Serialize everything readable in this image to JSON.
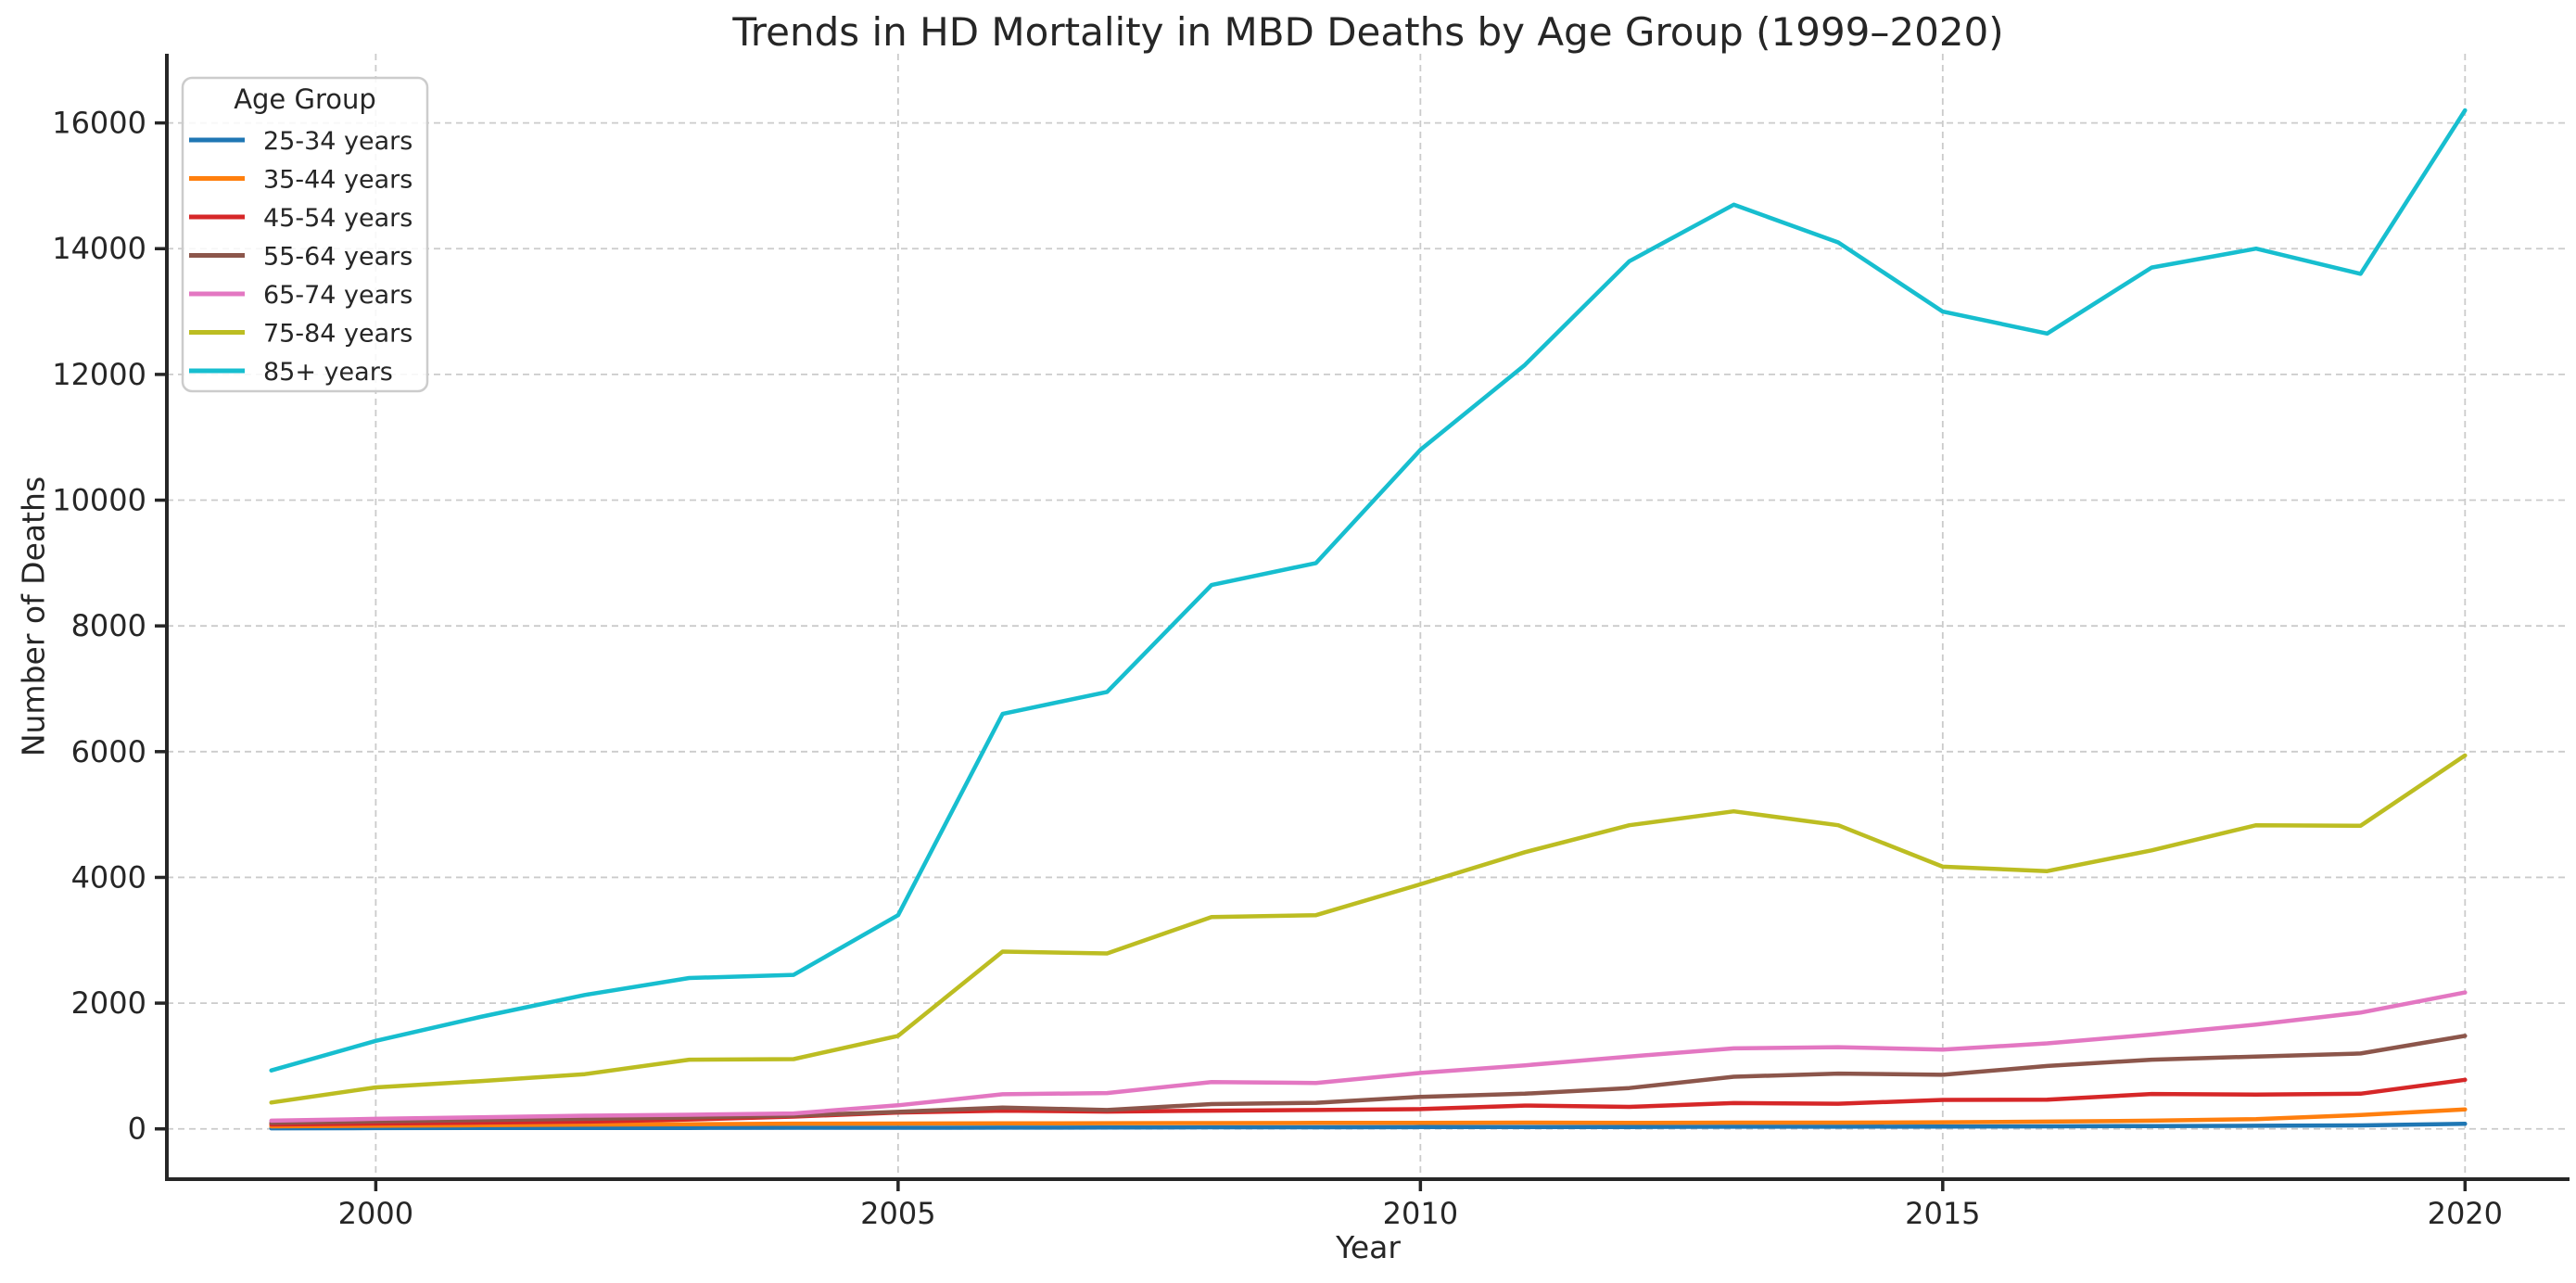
{
  "page": {
    "background": "#ffffff",
    "text_color": "#262626"
  },
  "chart_data": {
    "type": "line",
    "title": "Trends in HD Mortality in MBD Deaths by Age Group (1999–2020)",
    "xlabel": "Year",
    "ylabel": "Number of Deaths",
    "legend_title": "Age Group",
    "legend_position": "upper left",
    "grid": true,
    "grid_color": "#cbcbcb",
    "axis_color": "#262626",
    "text_color": "#262626",
    "xlim": [
      1998,
      2021
    ],
    "ylim": [
      -800,
      17100
    ],
    "xticks": [
      2000,
      2005,
      2010,
      2015,
      2020
    ],
    "yticks": [
      0,
      2000,
      4000,
      6000,
      8000,
      10000,
      12000,
      14000,
      16000
    ],
    "x": [
      1999,
      2000,
      2001,
      2002,
      2003,
      2004,
      2005,
      2006,
      2007,
      2008,
      2009,
      2010,
      2011,
      2012,
      2013,
      2014,
      2015,
      2016,
      2017,
      2018,
      2019,
      2020
    ],
    "series": [
      {
        "name": "25-34 years",
        "color": "#1f77b4",
        "values": [
          10,
          12,
          14,
          15,
          15,
          18,
          18,
          20,
          22,
          25,
          25,
          28,
          30,
          30,
          35,
          35,
          38,
          40,
          45,
          50,
          55,
          80
        ]
      },
      {
        "name": "35-44 years",
        "color": "#ff7f0e",
        "values": [
          40,
          50,
          58,
          68,
          75,
          83,
          85,
          88,
          90,
          92,
          95,
          95,
          100,
          95,
          100,
          100,
          105,
          115,
          130,
          155,
          220,
          310
        ]
      },
      {
        "name": "45-54 years",
        "color": "#d62728",
        "values": [
          70,
          85,
          100,
          115,
          150,
          195,
          260,
          290,
          275,
          290,
          300,
          315,
          370,
          350,
          410,
          400,
          460,
          465,
          555,
          545,
          560,
          780
        ]
      },
      {
        "name": "55-64 years",
        "color": "#8c564b",
        "values": [
          95,
          120,
          140,
          160,
          180,
          210,
          270,
          340,
          300,
          395,
          415,
          510,
          560,
          650,
          830,
          880,
          860,
          1000,
          1100,
          1150,
          1200,
          1480
        ]
      },
      {
        "name": "65-74 years",
        "color": "#e377c2",
        "values": [
          130,
          160,
          185,
          210,
          225,
          245,
          375,
          550,
          570,
          745,
          730,
          890,
          1010,
          1150,
          1280,
          1300,
          1260,
          1360,
          1500,
          1660,
          1850,
          2170
        ]
      },
      {
        "name": "75-84 years",
        "color": "#bcbd22",
        "values": [
          420,
          660,
          760,
          870,
          1100,
          1110,
          1480,
          2820,
          2790,
          3370,
          3400,
          3890,
          4400,
          4830,
          5050,
          4830,
          4170,
          4100,
          4430,
          4830,
          4820,
          5940
        ]
      },
      {
        "name": "85+ years",
        "color": "#17becf",
        "values": [
          930,
          1400,
          1780,
          2130,
          2400,
          2450,
          3400,
          6600,
          6950,
          8650,
          9000,
          10800,
          12150,
          13800,
          14700,
          14100,
          13000,
          12650,
          13700,
          14000,
          13600,
          16200
        ]
      }
    ]
  }
}
